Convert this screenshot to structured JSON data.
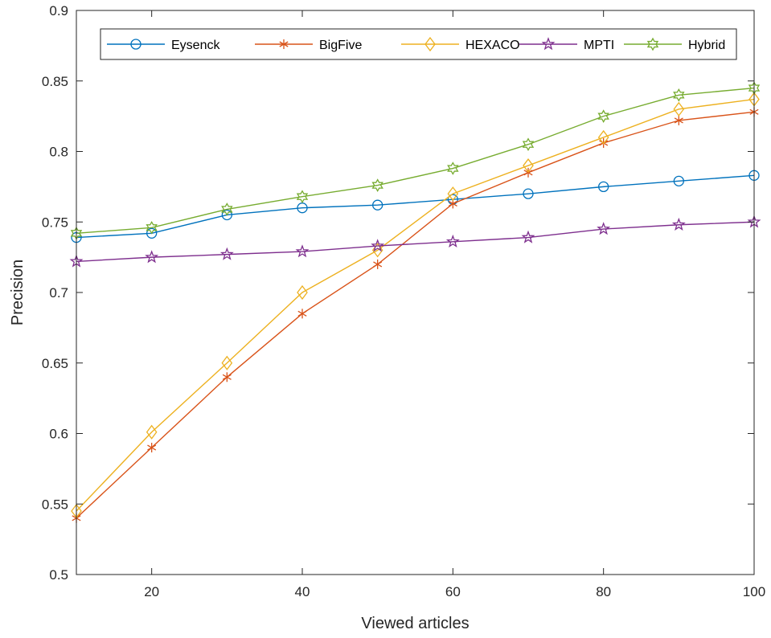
{
  "chart_data": {
    "type": "line",
    "title": "",
    "xlabel": "Viewed articles",
    "ylabel": "Precision",
    "xlim": [
      10,
      100
    ],
    "ylim": [
      0.5,
      0.9
    ],
    "x_ticks": [
      20,
      40,
      60,
      80,
      100
    ],
    "x_tick_labels": [
      "20",
      "40",
      "60",
      "80",
      "100"
    ],
    "y_ticks": [
      0.5,
      0.55,
      0.6,
      0.65,
      0.7,
      0.75,
      0.8,
      0.85,
      0.9
    ],
    "y_tick_labels": [
      "0.5",
      "0.55",
      "0.6",
      "0.65",
      "0.7",
      "0.75",
      "0.8",
      "0.85",
      "0.9"
    ],
    "grid": false,
    "legend_position": "top, horizontal",
    "x": [
      10,
      20,
      30,
      40,
      50,
      60,
      70,
      80,
      90,
      100
    ],
    "series": [
      {
        "name": "Eysenck",
        "color": "#0072BD",
        "marker": "circle",
        "values": [
          0.739,
          0.742,
          0.755,
          0.76,
          0.762,
          0.766,
          0.77,
          0.775,
          0.779,
          0.783
        ]
      },
      {
        "name": "BigFive",
        "color": "#D95319",
        "marker": "asterisk",
        "values": [
          0.54,
          0.59,
          0.64,
          0.685,
          0.72,
          0.763,
          0.785,
          0.806,
          0.822,
          0.828
        ]
      },
      {
        "name": "HEXACO",
        "color": "#EDB120",
        "marker": "diamond",
        "values": [
          0.545,
          0.601,
          0.65,
          0.7,
          0.73,
          0.77,
          0.79,
          0.81,
          0.83,
          0.837
        ]
      },
      {
        "name": "MPTI",
        "color": "#7E2F8E",
        "marker": "pentagram",
        "values": [
          0.722,
          0.725,
          0.727,
          0.729,
          0.733,
          0.736,
          0.739,
          0.745,
          0.748,
          0.75
        ]
      },
      {
        "name": "Hybrid",
        "color": "#77AC30",
        "marker": "hexagram",
        "values": [
          0.742,
          0.746,
          0.759,
          0.768,
          0.776,
          0.788,
          0.805,
          0.825,
          0.84,
          0.845
        ]
      }
    ]
  }
}
